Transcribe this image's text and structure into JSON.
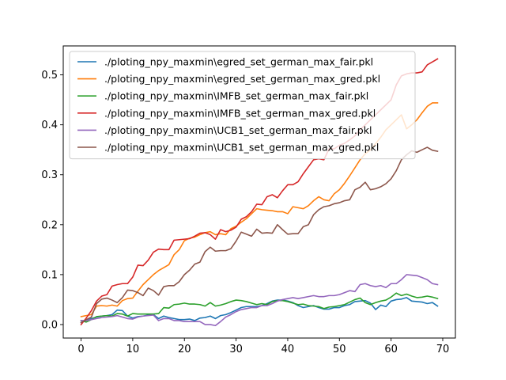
{
  "chart_data": {
    "type": "line",
    "title": "",
    "xlabel": "",
    "ylabel": "",
    "xlim": [
      -3.45,
      72.45
    ],
    "ylim": [
      -0.027,
      0.558
    ],
    "xticks": [
      0,
      10,
      20,
      30,
      40,
      50,
      60,
      70
    ],
    "yticks": [
      0.0,
      0.1,
      0.2,
      0.3,
      0.4,
      0.5
    ],
    "ytick_labels": [
      "0.0",
      "0.1",
      "0.2",
      "0.3",
      "0.4",
      "0.5"
    ],
    "grid": false,
    "legend_position": "upper-left",
    "x": [
      0,
      1,
      2,
      3,
      4,
      5,
      6,
      7,
      8,
      9,
      10,
      11,
      12,
      13,
      14,
      15,
      16,
      17,
      18,
      19,
      20,
      21,
      22,
      23,
      24,
      25,
      26,
      27,
      28,
      29,
      30,
      31,
      32,
      33,
      34,
      35,
      36,
      37,
      38,
      39,
      40,
      41,
      42,
      43,
      44,
      45,
      46,
      47,
      48,
      49,
      50,
      51,
      52,
      53,
      54,
      55,
      56,
      57,
      58,
      59,
      60,
      61,
      62,
      63,
      64,
      65,
      66,
      67,
      68,
      69
    ],
    "series": [
      {
        "name": "./ploting_npy_maxmin\\egred_set_german_max_fair.pkl",
        "color": "#1f77b4",
        "values": [
          0.004,
          0.008,
          0.012,
          0.015,
          0.017,
          0.018,
          0.02,
          0.029,
          0.028,
          0.017,
          0.013,
          0.016,
          0.017,
          0.019,
          0.02,
          0.012,
          0.017,
          0.014,
          0.012,
          0.01,
          0.01,
          0.011,
          0.008,
          0.013,
          0.014,
          0.017,
          0.012,
          0.018,
          0.02,
          0.024,
          0.029,
          0.034,
          0.036,
          0.036,
          0.036,
          0.038,
          0.042,
          0.047,
          0.049,
          0.049,
          0.047,
          0.044,
          0.038,
          0.034,
          0.036,
          0.038,
          0.034,
          0.031,
          0.031,
          0.034,
          0.034,
          0.038,
          0.04,
          0.046,
          0.047,
          0.048,
          0.043,
          0.03,
          0.039,
          0.036,
          0.047,
          0.05,
          0.051,
          0.054,
          0.047,
          0.046,
          0.045,
          0.042,
          0.044,
          0.037
        ]
      },
      {
        "name": "./ploting_npy_maxmin\\egred_set_german_max_gred.pkl",
        "color": "#ff7f0e",
        "values": [
          0.016,
          0.018,
          0.02,
          0.037,
          0.038,
          0.037,
          0.039,
          0.037,
          0.048,
          0.052,
          0.053,
          0.067,
          0.08,
          0.09,
          0.1,
          0.108,
          0.114,
          0.12,
          0.14,
          0.15,
          0.168,
          0.173,
          0.175,
          0.18,
          0.184,
          0.186,
          0.18,
          0.182,
          0.18,
          0.192,
          0.197,
          0.205,
          0.212,
          0.222,
          0.232,
          0.23,
          0.229,
          0.228,
          0.226,
          0.226,
          0.222,
          0.236,
          0.234,
          0.232,
          0.238,
          0.248,
          0.256,
          0.25,
          0.248,
          0.262,
          0.27,
          0.283,
          0.298,
          0.314,
          0.33,
          0.342,
          0.35,
          0.362,
          0.375,
          0.39,
          0.4,
          0.41,
          0.42,
          0.392,
          0.4,
          0.41,
          0.424,
          0.437,
          0.444,
          0.444
        ]
      },
      {
        "name": "./ploting_npy_maxmin\\IMFB_set_german_max_fair.pkl",
        "color": "#2ca02c",
        "values": [
          0.008,
          0.005,
          0.01,
          0.016,
          0.017,
          0.018,
          0.017,
          0.022,
          0.021,
          0.017,
          0.022,
          0.021,
          0.021,
          0.021,
          0.021,
          0.022,
          0.034,
          0.033,
          0.04,
          0.041,
          0.043,
          0.041,
          0.041,
          0.04,
          0.037,
          0.044,
          0.037,
          0.039,
          0.042,
          0.046,
          0.049,
          0.048,
          0.046,
          0.043,
          0.04,
          0.042,
          0.04,
          0.046,
          0.048,
          0.048,
          0.046,
          0.043,
          0.04,
          0.041,
          0.038,
          0.037,
          0.036,
          0.032,
          0.035,
          0.036,
          0.038,
          0.04,
          0.045,
          0.05,
          0.053,
          0.044,
          0.04,
          0.044,
          0.047,
          0.049,
          0.055,
          0.063,
          0.058,
          0.061,
          0.057,
          0.054,
          0.055,
          0.057,
          0.055,
          0.052
        ]
      },
      {
        "name": "./ploting_npy_maxmin\\IMFB_set_german_max_gred.pkl",
        "color": "#d62728",
        "values": [
          0.0,
          0.013,
          0.028,
          0.047,
          0.057,
          0.06,
          0.077,
          0.08,
          0.082,
          0.082,
          0.095,
          0.119,
          0.118,
          0.129,
          0.145,
          0.151,
          0.15,
          0.15,
          0.169,
          0.17,
          0.171,
          0.172,
          0.177,
          0.183,
          0.184,
          0.18,
          0.171,
          0.19,
          0.186,
          0.189,
          0.195,
          0.211,
          0.216,
          0.226,
          0.241,
          0.24,
          0.256,
          0.26,
          0.254,
          0.268,
          0.28,
          0.28,
          0.286,
          0.302,
          0.316,
          0.33,
          0.332,
          0.33,
          0.352,
          0.352,
          0.359,
          0.363,
          0.37,
          0.378,
          0.39,
          0.4,
          0.41,
          0.42,
          0.43,
          0.44,
          0.45,
          0.48,
          0.498,
          0.502,
          0.504,
          0.504,
          0.506,
          0.52,
          0.526,
          0.532
        ]
      },
      {
        "name": "./ploting_npy_maxmin\\UCB1_set_german_max_fair.pkl",
        "color": "#9467bd",
        "values": [
          0.008,
          0.008,
          0.01,
          0.012,
          0.014,
          0.015,
          0.016,
          0.018,
          0.015,
          0.012,
          0.011,
          0.015,
          0.017,
          0.018,
          0.019,
          0.008,
          0.012,
          0.012,
          0.008,
          0.008,
          0.006,
          0.006,
          0.006,
          0.006,
          0.0,
          0.0,
          -0.002,
          0.006,
          0.015,
          0.02,
          0.026,
          0.03,
          0.032,
          0.034,
          0.034,
          0.038,
          0.038,
          0.042,
          0.047,
          0.05,
          0.052,
          0.054,
          0.052,
          0.054,
          0.056,
          0.058,
          0.056,
          0.056,
          0.058,
          0.058,
          0.06,
          0.064,
          0.068,
          0.066,
          0.08,
          0.082,
          0.078,
          0.076,
          0.078,
          0.074,
          0.082,
          0.082,
          0.09,
          0.1,
          0.099,
          0.098,
          0.094,
          0.09,
          0.082,
          0.08
        ]
      },
      {
        "name": "./ploting_npy_maxmin\\UCB1_set_german_max_gred.pkl",
        "color": "#8c564b",
        "values": [
          0.004,
          0.01,
          0.015,
          0.042,
          0.051,
          0.053,
          0.049,
          0.044,
          0.054,
          0.069,
          0.068,
          0.064,
          0.058,
          0.073,
          0.068,
          0.059,
          0.076,
          0.078,
          0.078,
          0.086,
          0.1,
          0.109,
          0.121,
          0.125,
          0.146,
          0.155,
          0.147,
          0.148,
          0.148,
          0.152,
          0.167,
          0.185,
          0.181,
          0.177,
          0.191,
          0.183,
          0.184,
          0.183,
          0.2,
          0.19,
          0.181,
          0.182,
          0.182,
          0.196,
          0.2,
          0.22,
          0.23,
          0.236,
          0.238,
          0.242,
          0.244,
          0.248,
          0.25,
          0.27,
          0.275,
          0.285,
          0.27,
          0.272,
          0.276,
          0.282,
          0.292,
          0.308,
          0.33,
          0.34,
          0.348,
          0.345,
          0.35,
          0.355,
          0.349,
          0.347
        ]
      }
    ]
  }
}
